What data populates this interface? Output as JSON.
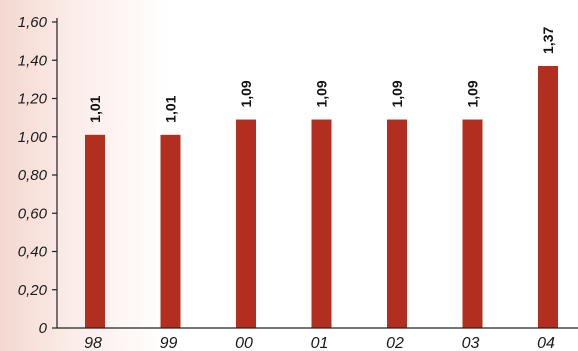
{
  "chart_data": {
    "type": "bar",
    "categories": [
      "98",
      "99",
      "00",
      "01",
      "02",
      "03",
      "04"
    ],
    "values": [
      1.01,
      1.01,
      1.09,
      1.09,
      1.09,
      1.09,
      1.37
    ],
    "data_labels": [
      "1,01",
      "1,01",
      "1,09",
      "1,09",
      "1,09",
      "1,09",
      "1,37"
    ],
    "y_ticks": [
      0,
      0.2,
      0.4,
      0.6,
      0.8,
      1.0,
      1.2,
      1.4,
      1.6
    ],
    "y_tick_labels": [
      "0",
      "0,20",
      "0,40",
      "0,60",
      "0,80",
      "1,00",
      "1,20",
      "1,40",
      "1,60"
    ],
    "ylim": [
      0,
      1.6
    ],
    "bar_color": "#b22e1f",
    "grid": false,
    "title": "",
    "xlabel": "",
    "ylabel": ""
  }
}
